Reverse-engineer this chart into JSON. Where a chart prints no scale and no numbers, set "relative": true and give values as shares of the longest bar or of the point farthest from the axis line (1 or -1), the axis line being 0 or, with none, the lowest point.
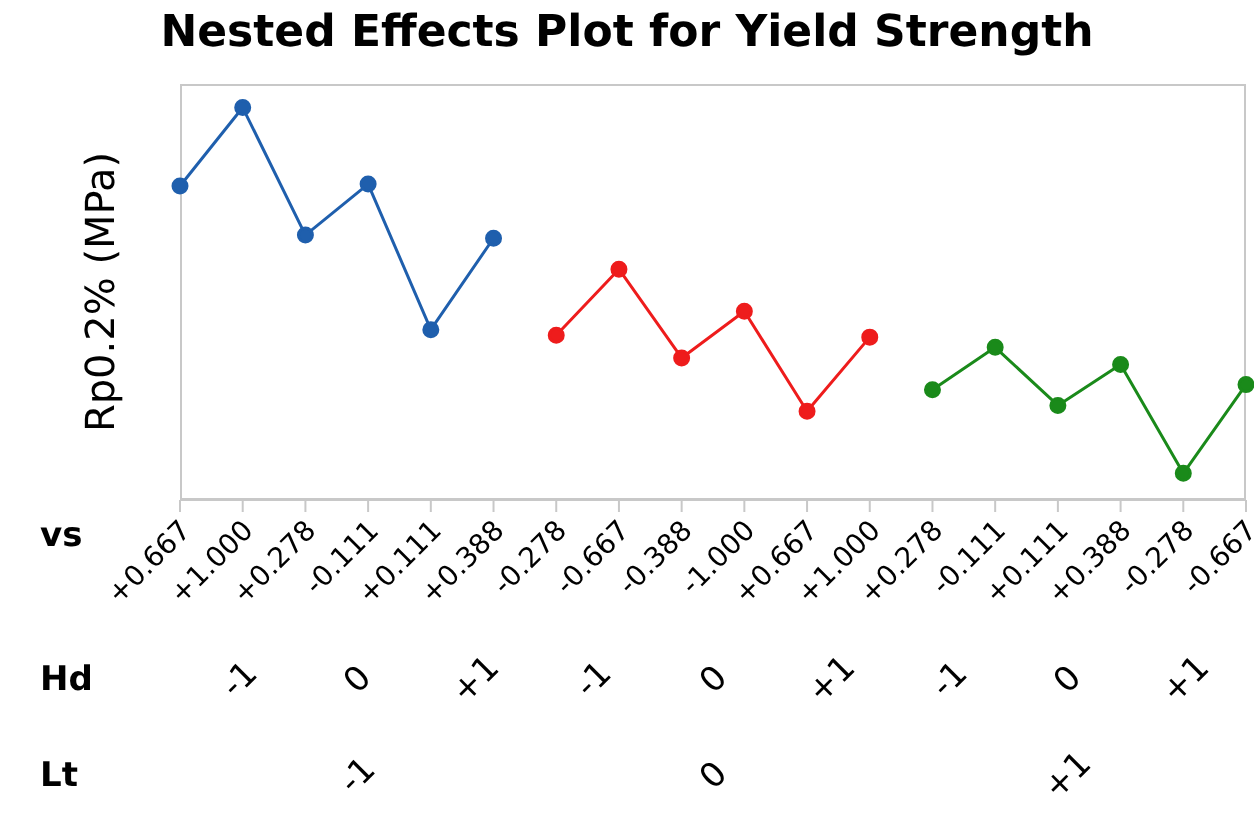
{
  "chart_data": {
    "type": "line",
    "title": "Nested Effects Plot for Yield Strength",
    "ylabel": "Rp0.2% (MPa)",
    "xlabel": "vs",
    "relative": true,
    "marker": "circle",
    "categories": [
      "+0.667",
      "+1.000",
      "+0.278",
      "-0.111",
      "+0.111",
      "+0.388",
      "-0.278",
      "-0.667",
      "-0.388",
      "-1.000",
      "+0.667",
      "+1.000",
      "+0.278",
      "-0.111",
      "+0.111",
      "+0.388",
      "-0.278",
      "-0.667"
    ],
    "series": [
      {
        "color": "#1f5fad",
        "values": [
          0.8,
          1.0,
          0.675,
          0.805,
          0.434,
          0.667,
          null,
          null,
          null,
          null,
          null,
          null,
          null,
          null,
          null,
          null,
          null,
          null
        ]
      },
      {
        "color": "#ee1c1c",
        "values": [
          null,
          null,
          null,
          null,
          null,
          null,
          0.42,
          0.588,
          0.362,
          0.481,
          0.226,
          0.415,
          null,
          null,
          null,
          null,
          null,
          null
        ]
      },
      {
        "color": "#1a8a1a",
        "values": [
          null,
          null,
          null,
          null,
          null,
          null,
          null,
          null,
          null,
          null,
          null,
          null,
          0.281,
          0.389,
          0.241,
          0.345,
          0.068,
          0.294
        ]
      }
    ],
    "annotations": [
      "Hd",
      "-1",
      "0",
      "+1",
      "-1",
      "0",
      "+1",
      "-1",
      "0",
      "+1",
      "Lt",
      "-1",
      "0",
      "+1"
    ]
  }
}
